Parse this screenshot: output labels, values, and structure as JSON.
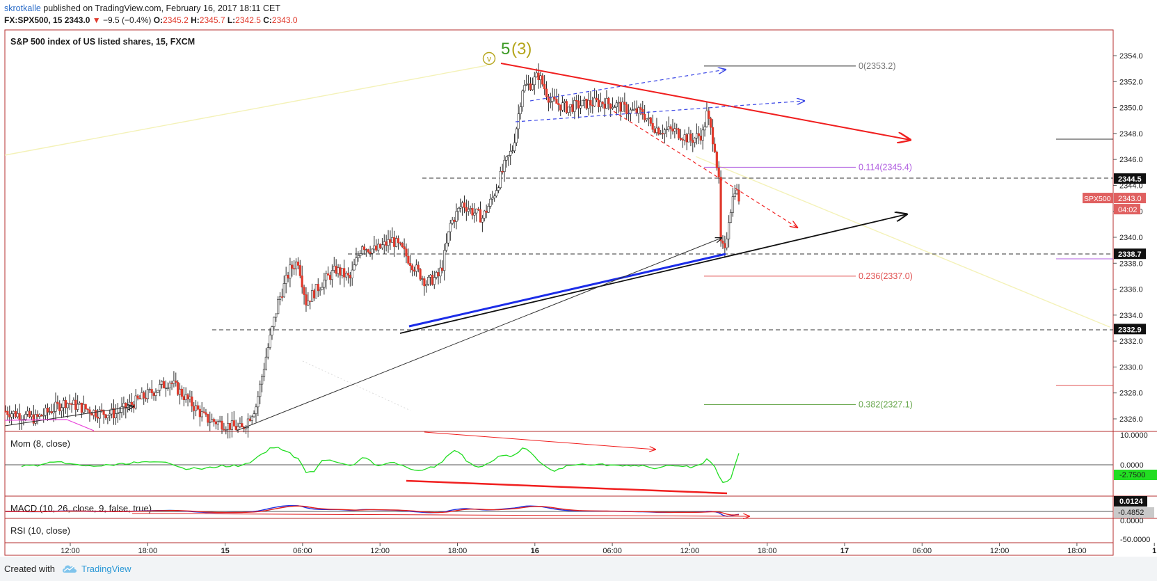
{
  "header": {
    "author": "skrotkalle",
    "published": " published on TradingView.com, February 16, 2017 18:11 CET",
    "symbol": "FX:SPX500, 15",
    "price": "2343.0",
    "change": "−9.5 (−0.4%)",
    "o_label": "O:",
    "o_value": "2345.2",
    "h_label": "H:",
    "h_value": "2345.7",
    "l_label": "L:",
    "l_value": "2342.5",
    "c_label": "C:",
    "c_value": "2343.0"
  },
  "main_pane": {
    "title": "S&P 500 index of US listed shares, 15, FXCM",
    "wave_label_5": "5",
    "wave_label_3": "(3)",
    "wave_label_v": "v",
    "fib_levels": [
      {
        "label": "0(2353.2)",
        "value": 2353.2,
        "color": "#787878"
      },
      {
        "label": "0.114(2345.4)",
        "value": 2345.4,
        "color": "#b05ee0"
      },
      {
        "label": "0.236(2337.0)",
        "value": 2337.0,
        "color": "#e05050"
      },
      {
        "label": "0.382(2327.1)",
        "value": 2327.1,
        "color": "#6aa84f"
      }
    ],
    "price_badges": [
      {
        "text": "2344.5",
        "value": 2344.5
      },
      {
        "text": "2338.7",
        "value": 2338.7
      },
      {
        "text": "2332.9",
        "value": 2332.9
      }
    ],
    "symbol_badge": "SPX500",
    "last_price_badge": "2343.0",
    "countdown_badge": "04:02"
  },
  "mom_pane": {
    "title": "Mom (8, close)",
    "ticks": [
      "10.0000",
      "0.0000"
    ],
    "value_badge": "-2.7500"
  },
  "macd_pane": {
    "title": "MACD (10, 26, close, 9, false, true)",
    "badge_1": "0.0124",
    "badge_2": "-0.4852"
  },
  "rsi_pane": {
    "title": "RSI (10, close)",
    "ticks": [
      "0.0000",
      "-50.0000"
    ]
  },
  "footer": {
    "created_with": "Created with",
    "brand": "TradingView"
  },
  "chart_data": {
    "type": "candlestick",
    "title": "S&P 500 index of US listed shares, 15, FXCM",
    "y_range": [
      2325,
      2355
    ],
    "y_ticks": [
      2326.0,
      2328.0,
      2330.0,
      2332.0,
      2334.0,
      2336.0,
      2338.0,
      2340.0,
      2342.0,
      2344.0,
      2346.0,
      2348.0,
      2350.0,
      2352.0,
      2354.0
    ],
    "x_ticks": [
      "12:00",
      "18:00",
      "15",
      "06:00",
      "12:00",
      "18:00",
      "16",
      "06:00",
      "12:00",
      "18:00",
      "17",
      "06:00",
      "12:00",
      "18:00",
      "1"
    ],
    "bold_x_ticks": [
      "15",
      "16",
      "17",
      "1"
    ],
    "close_path": [
      [
        0,
        2326.6
      ],
      [
        15,
        2326.0
      ],
      [
        30,
        2327.3
      ],
      [
        45,
        2326.5
      ],
      [
        55,
        2326.4
      ],
      [
        70,
        2327.8
      ],
      [
        82,
        2328.9
      ],
      [
        100,
        2326.0
      ],
      [
        118,
        2325.2
      ],
      [
        125,
        2327.0
      ],
      [
        130,
        2330.8
      ],
      [
        136,
        2335.0
      ],
      [
        142,
        2337.5
      ],
      [
        146,
        2338.2
      ],
      [
        150,
        2335.0
      ],
      [
        158,
        2336.5
      ],
      [
        165,
        2337.5
      ],
      [
        172,
        2336.8
      ],
      [
        178,
        2339.5
      ],
      [
        180,
        2339.2
      ],
      [
        185,
        2339.0
      ],
      [
        193,
        2339.8
      ],
      [
        198,
        2339.0
      ],
      [
        205,
        2337.5
      ],
      [
        210,
        2336.5
      ],
      [
        216,
        2337.0
      ],
      [
        218,
        2337.8
      ],
      [
        222,
        2341.0
      ],
      [
        228,
        2342.6
      ],
      [
        233,
        2342.0
      ],
      [
        238,
        2341.5
      ],
      [
        243,
        2343.0
      ],
      [
        249,
        2345.5
      ],
      [
        253,
        2346.8
      ],
      [
        255,
        2348.5
      ],
      [
        258,
        2351.5
      ],
      [
        262,
        2351.8
      ],
      [
        266,
        2352.5
      ],
      [
        272,
        2350.5
      ],
      [
        280,
        2350.0
      ],
      [
        290,
        2350.3
      ],
      [
        298,
        2350.4
      ],
      [
        305,
        2350.2
      ],
      [
        312,
        2349.7
      ],
      [
        318,
        2349.6
      ],
      [
        322,
        2348.7
      ],
      [
        326,
        2348.3
      ],
      [
        334,
        2348.2
      ],
      [
        342,
        2347.5
      ],
      [
        348,
        2348.0
      ],
      [
        350,
        2349.5
      ],
      [
        354,
        2347.0
      ],
      [
        356,
        2344.2
      ],
      [
        357,
        2339.5
      ],
      [
        359,
        2338.8
      ],
      [
        361,
        2341.5
      ],
      [
        364,
        2343.8
      ],
      [
        366,
        2343.0
      ]
    ],
    "y_axis_badges": [
      2344.5,
      2343.0,
      2338.7,
      2332.9
    ],
    "momentum": {
      "name": "Mom (8, close)",
      "last_value": -2.75,
      "y_ticks": [
        10.0,
        0.0
      ]
    },
    "macd": {
      "name": "MACD (10, 26, close, 9, false, true)",
      "last_values": [
        0.0124,
        -0.4852
      ],
      "y_ticks": [
        0.0
      ]
    },
    "rsi": {
      "name": "RSI (10, close)",
      "y_ticks": [
        0.0,
        -50.0
      ]
    }
  },
  "colors": {
    "up_candle": "#ffffff",
    "down_candle": "#e0392b",
    "wick": "#2b2b2b",
    "pane_border": "#b52c2c",
    "momentum_line": "#22dd22",
    "resistance_line": "#f01f1f",
    "support_line_blue": "#1b2ce8",
    "support_line_black": "#111111",
    "channel_dashed": "#3b47e6",
    "wave_green": "#3c9a24",
    "wave_olive": "#b5a51a"
  }
}
